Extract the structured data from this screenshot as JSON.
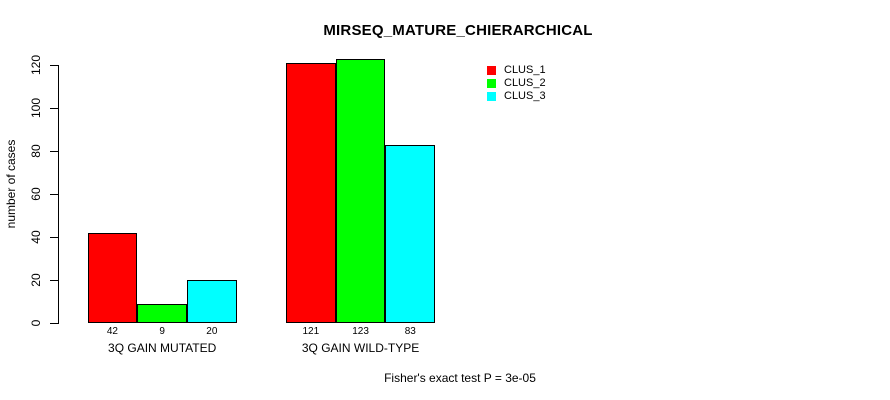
{
  "title": "MIRSEQ_MATURE_CHIERARCHICAL",
  "footer": "Fisher's exact test P = 3e-05",
  "chart_data": {
    "type": "bar",
    "title": "MIRSEQ_MATURE_CHIERARCHICAL",
    "xlabel": "",
    "ylabel": "number of cases",
    "categories": [
      "3Q GAIN MUTATED",
      "3Q GAIN WILD-TYPE"
    ],
    "series": [
      {
        "name": "CLUS_1",
        "color": "#ff0000",
        "values": [
          42,
          121
        ]
      },
      {
        "name": "CLUS_2",
        "color": "#00ff00",
        "values": [
          9,
          123
        ]
      },
      {
        "name": "CLUS_3",
        "color": "#00ffff",
        "values": [
          20,
          83
        ]
      }
    ],
    "yticks": [
      0,
      20,
      40,
      60,
      80,
      100,
      120
    ],
    "ylim": [
      0,
      120
    ],
    "bar_value_labels": true,
    "grid": false,
    "legend_position": "top-right",
    "annotation": "Fisher's exact test P = 3e-05"
  }
}
